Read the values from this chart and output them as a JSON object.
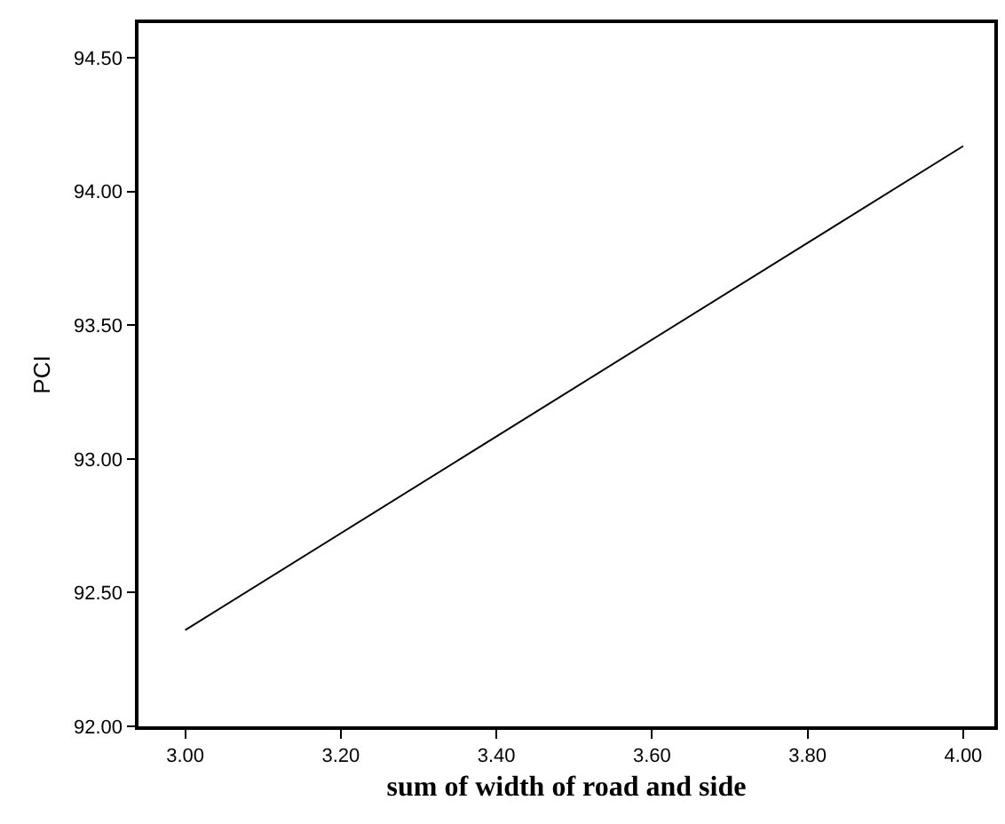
{
  "chart_data": {
    "type": "line",
    "xlabel": "sum of width of road and side",
    "ylabel": "PCI",
    "x": [
      3.0,
      4.0
    ],
    "series": [
      {
        "color": "#000000",
        "values": [
          92.36,
          94.17
        ]
      }
    ],
    "xlim": [
      2.94,
      4.04
    ],
    "ylim": [
      92.0,
      94.63
    ],
    "xticks": [
      {
        "value": 3,
        "label": "3.00"
      },
      {
        "value": 3.2,
        "label": "3.20"
      },
      {
        "value": 3.4,
        "label": "3.40"
      },
      {
        "value": 3.6,
        "label": "3.60"
      },
      {
        "value": 3.8,
        "label": "3.80"
      },
      {
        "value": 4,
        "label": "4.00"
      }
    ],
    "yticks": [
      {
        "value": 92,
        "label": "92.00"
      },
      {
        "value": 92.5,
        "label": "92.50"
      },
      {
        "value": 93,
        "label": "93.00"
      },
      {
        "value": 93.5,
        "label": "93.50"
      },
      {
        "value": 94,
        "label": "94.00"
      },
      {
        "value": 94.5,
        "label": "94.50"
      }
    ],
    "grid": false,
    "marker": "none",
    "line_style": "solid"
  }
}
